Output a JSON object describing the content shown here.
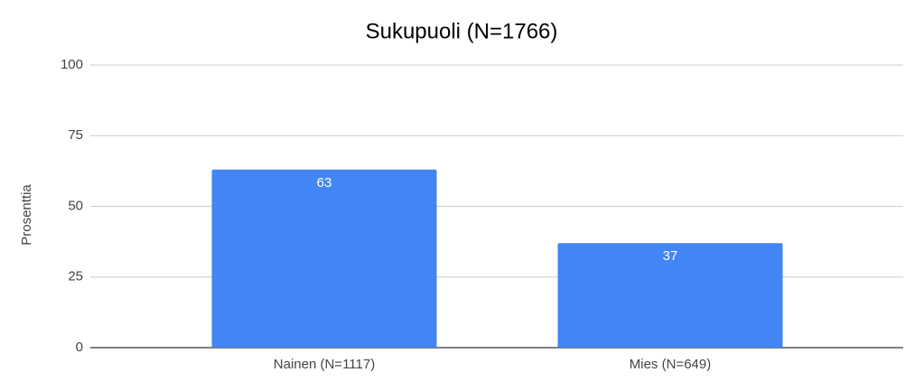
{
  "chart_data": {
    "type": "bar",
    "title": "Sukupuoli (N=1766)",
    "y_label": "Prosenttia",
    "categories": [
      "Nainen (N=1117)",
      "Mies (N=649)"
    ],
    "values": [
      63,
      37
    ],
    "color": "#4285f4",
    "ylim": [
      0,
      100
    ],
    "yticks": [
      0,
      25,
      50,
      75,
      100
    ],
    "grid": true
  }
}
